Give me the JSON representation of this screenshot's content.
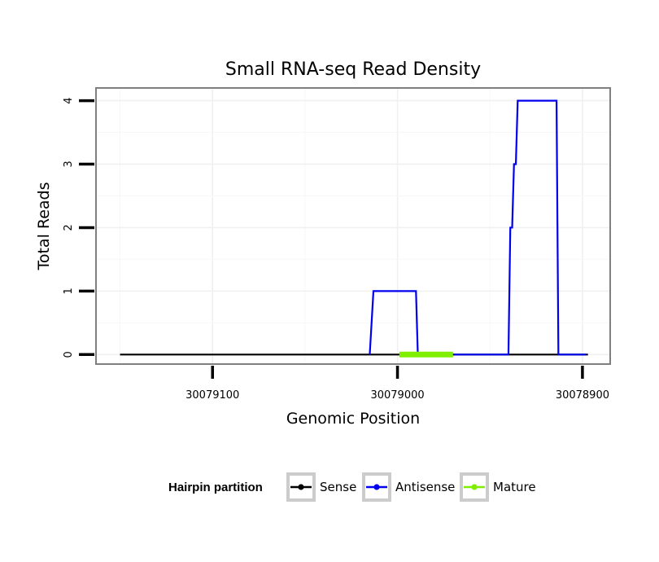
{
  "chart_data": {
    "type": "line",
    "title": "Small RNA-seq Read Density",
    "xlabel": "Genomic Position",
    "ylabel": "Total Reads",
    "x_reversed": true,
    "xlim": [
      30079163,
      30078885
    ],
    "ylim": [
      -0.15,
      4.2
    ],
    "x_ticks": [
      30079100,
      30079000,
      30078900
    ],
    "x_tick_labels": [
      "30079100",
      "30079000",
      "30078900"
    ],
    "y_ticks": [
      0,
      1,
      2,
      3,
      4
    ],
    "y_tick_labels": [
      "0",
      "1",
      "2",
      "3",
      "4"
    ],
    "grid": true,
    "legend": {
      "title": "Hairpin partition",
      "position": "bottom",
      "entries": [
        {
          "name": "Sense",
          "color": "#000000"
        },
        {
          "name": "Antisense",
          "color": "#0000ee"
        },
        {
          "name": "Mature",
          "color": "#7fee00"
        }
      ]
    },
    "series": [
      {
        "name": "Sense",
        "color": "#000000",
        "points": [
          [
            30079150,
            0
          ],
          [
            30078897,
            0
          ]
        ]
      },
      {
        "name": "Antisense",
        "color": "#0000ee",
        "points": [
          [
            30079015,
            0
          ],
          [
            30079013,
            1
          ],
          [
            30078990,
            1
          ],
          [
            30078989,
            0
          ],
          [
            30078940,
            0
          ],
          [
            30078939,
            2
          ],
          [
            30078938,
            2
          ],
          [
            30078937,
            3
          ],
          [
            30078936,
            3
          ],
          [
            30078935,
            4
          ],
          [
            30078914,
            4
          ],
          [
            30078913,
            0
          ],
          [
            30078898,
            0
          ]
        ]
      },
      {
        "name": "Mature",
        "color": "#7fee00",
        "points": [
          [
            30078999,
            0
          ],
          [
            30078970,
            0
          ]
        ]
      }
    ]
  }
}
